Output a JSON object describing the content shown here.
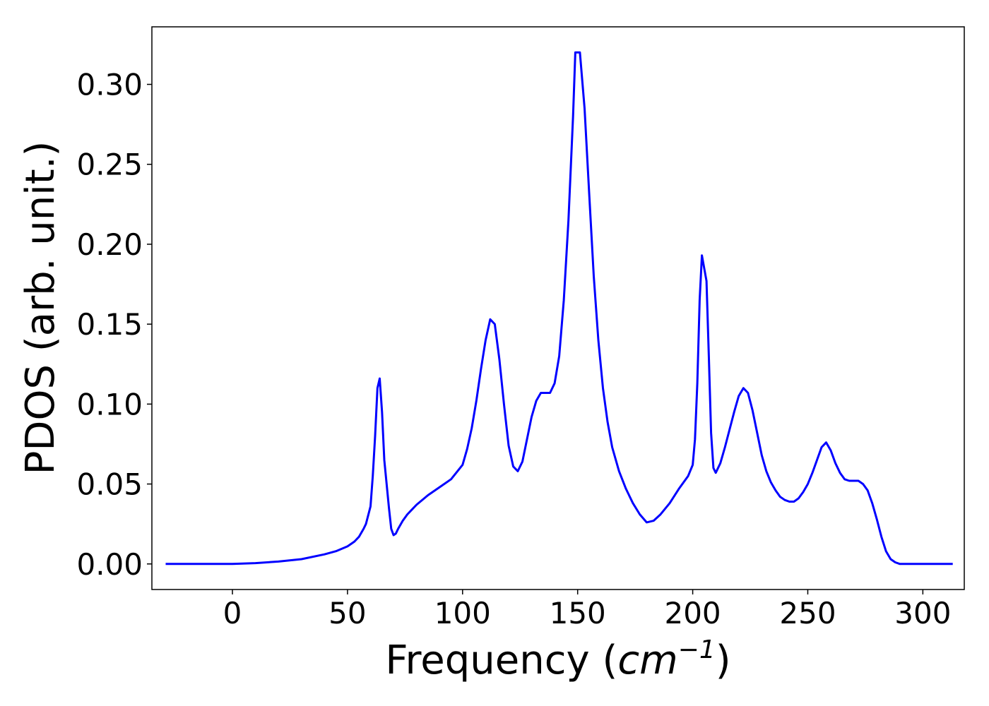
{
  "chart_data": {
    "type": "line",
    "xlabel_prefix": "Frequency (",
    "xlabel_unit_base": "cm",
    "xlabel_unit_exp": "−1",
    "xlabel_suffix": ")",
    "ylabel": "PDOS (arb. unit.)",
    "xlim": [
      -35,
      318
    ],
    "ylim": [
      -0.016,
      0.336
    ],
    "xticks": [
      0,
      50,
      100,
      150,
      200,
      250,
      300
    ],
    "xtick_labels": [
      "0",
      "50",
      "100",
      "150",
      "200",
      "250",
      "300"
    ],
    "yticks": [
      0.0,
      0.05,
      0.1,
      0.15,
      0.2,
      0.25,
      0.3
    ],
    "ytick_labels": [
      "0.00",
      "0.05",
      "0.10",
      "0.15",
      "0.20",
      "0.25",
      "0.30"
    ],
    "grid": false,
    "line_color": "#0000ff",
    "series": [
      {
        "x": [
          -29,
          0,
          10,
          20,
          30,
          40,
          45,
          50,
          53,
          55,
          57,
          58,
          60,
          61,
          62,
          63,
          64,
          65,
          66,
          68,
          69,
          70,
          71,
          72,
          74,
          76,
          78,
          80,
          85,
          90,
          95,
          100,
          102,
          104,
          106,
          108,
          110,
          112,
          114,
          116,
          118,
          120,
          122,
          124,
          126,
          128,
          130,
          132,
          134,
          136,
          138,
          140,
          142,
          144,
          146,
          148,
          149,
          151,
          153,
          155,
          157,
          159,
          161,
          163,
          165,
          168,
          171,
          174,
          177,
          180,
          183,
          186,
          190,
          194,
          198,
          200,
          201,
          202,
          203,
          204,
          206,
          207,
          208,
          209,
          210,
          212,
          214,
          216,
          218,
          220,
          222,
          224,
          226,
          228,
          230,
          232,
          234,
          236,
          238,
          240,
          242,
          244,
          246,
          248,
          250,
          252,
          254,
          256,
          258,
          260,
          262,
          264,
          266,
          268,
          270,
          272,
          274,
          276,
          278,
          280,
          282,
          284,
          286,
          288,
          290,
          294,
          300,
          313
        ],
        "y": [
          0.0,
          0.0,
          0.0005,
          0.0015,
          0.003,
          0.006,
          0.008,
          0.011,
          0.014,
          0.017,
          0.022,
          0.025,
          0.036,
          0.055,
          0.08,
          0.11,
          0.116,
          0.095,
          0.065,
          0.035,
          0.022,
          0.018,
          0.019,
          0.022,
          0.027,
          0.031,
          0.034,
          0.037,
          0.043,
          0.048,
          0.053,
          0.062,
          0.072,
          0.085,
          0.102,
          0.122,
          0.14,
          0.153,
          0.15,
          0.128,
          0.1,
          0.074,
          0.061,
          0.058,
          0.064,
          0.078,
          0.092,
          0.102,
          0.107,
          0.107,
          0.107,
          0.113,
          0.13,
          0.165,
          0.215,
          0.28,
          0.32,
          0.32,
          0.285,
          0.232,
          0.18,
          0.14,
          0.11,
          0.089,
          0.073,
          0.058,
          0.047,
          0.038,
          0.031,
          0.026,
          0.027,
          0.031,
          0.038,
          0.047,
          0.055,
          0.062,
          0.078,
          0.113,
          0.165,
          0.193,
          0.177,
          0.13,
          0.082,
          0.06,
          0.057,
          0.063,
          0.073,
          0.084,
          0.095,
          0.105,
          0.11,
          0.107,
          0.096,
          0.082,
          0.068,
          0.058,
          0.051,
          0.046,
          0.042,
          0.04,
          0.039,
          0.039,
          0.041,
          0.045,
          0.05,
          0.057,
          0.065,
          0.073,
          0.076,
          0.071,
          0.063,
          0.057,
          0.053,
          0.052,
          0.052,
          0.052,
          0.05,
          0.046,
          0.038,
          0.028,
          0.017,
          0.008,
          0.003,
          0.001,
          0.0,
          0.0,
          0.0,
          0.0
        ]
      }
    ]
  }
}
